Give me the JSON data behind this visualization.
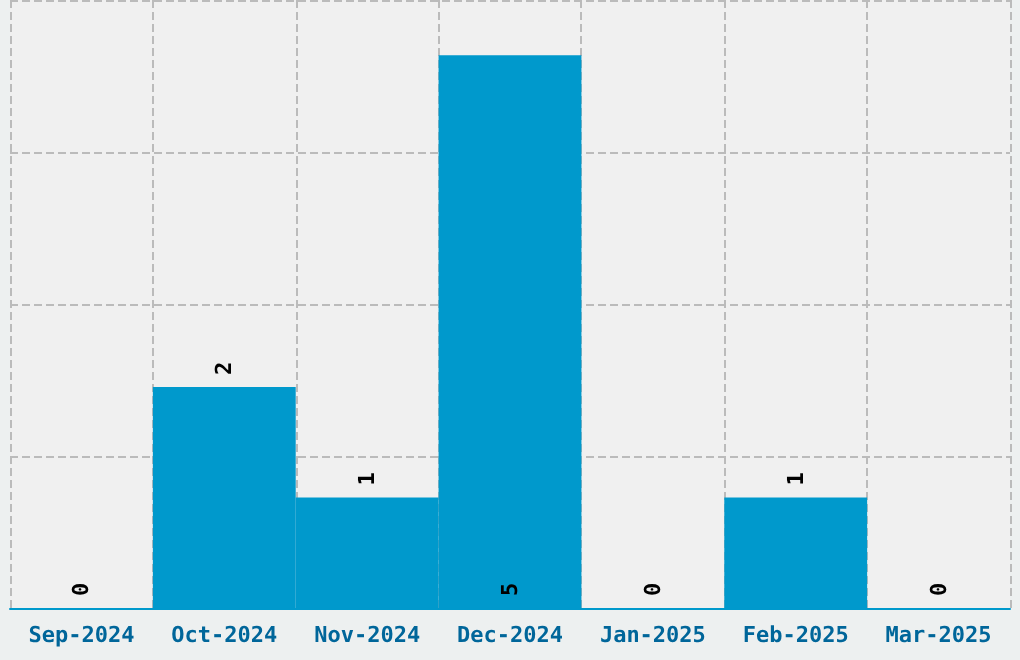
{
  "chart_data": {
    "type": "bar",
    "categories": [
      "Sep-2024",
      "Oct-2024",
      "Nov-2024",
      "Dec-2024",
      "Jan-2025",
      "Feb-2025",
      "Mar-2025"
    ],
    "values": [
      0,
      2,
      1,
      5,
      0,
      1,
      0
    ],
    "color": "#0099cc",
    "ylim": [
      0,
      5.5
    ],
    "yticks": [
      {
        "value": 0,
        "label": null
      },
      {
        "value": 1.375,
        "label": null
      },
      {
        "value": 2.75,
        "label": null
      },
      {
        "value": 4.125,
        "label": null
      },
      {
        "value": 5.5,
        "label": null
      }
    ],
    "tick_labels": "x",
    "grid": true,
    "data_labels": true
  }
}
